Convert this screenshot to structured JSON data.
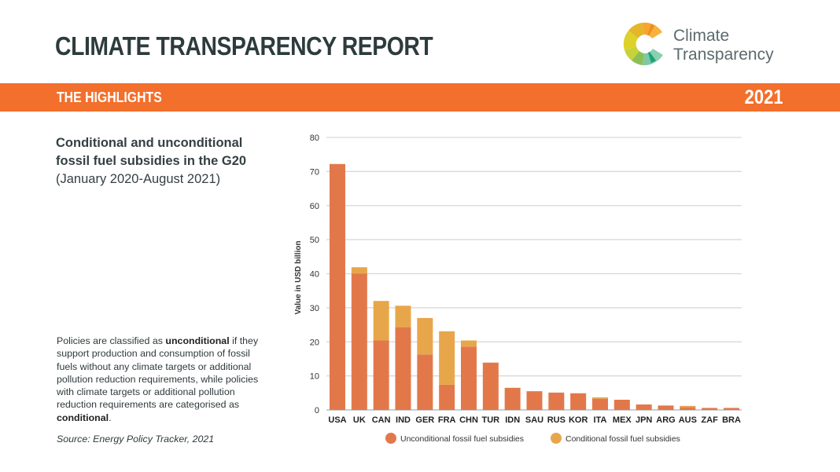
{
  "header": {
    "title": "CLIMATE TRANSPARENCY REPORT",
    "logo_line1": "Climate",
    "logo_line2": "Transparency",
    "band_label": "THE HIGHLIGHTS",
    "year": "2021"
  },
  "colors": {
    "brand_orange": "#f26f2c",
    "unconditional": "#e2784a",
    "conditional": "#e8a64a"
  },
  "text": {
    "chart_title_line1": "Conditional and unconditional",
    "chart_title_line2": "fossil fuel subsidies in the G20",
    "chart_subtitle": "(January 2020-August 2021)",
    "note_part1": "Policies are classified as ",
    "note_bold1": "unconditional",
    "note_part2": " if they support production and consumption of fossil fuels without any climate targets or additional pollution reduction requirements, while policies with climate targets or additional pollution reduction requirements are categorised as ",
    "note_bold2": "conditional",
    "note_part3": ".",
    "source": "Source: Energy Policy Tracker, 2021"
  },
  "chart_data": {
    "type": "bar",
    "stacked": true,
    "title": "Conditional and unconditional fossil fuel subsidies in the G20 (January 2020-August 2021)",
    "xlabel": "",
    "ylabel": "Value in USD billion",
    "ylim": [
      0,
      80
    ],
    "yticks": [
      0,
      10,
      20,
      30,
      40,
      50,
      60,
      70,
      80
    ],
    "grid": true,
    "legend_position": "bottom",
    "categories": [
      "USA",
      "UK",
      "CAN",
      "IND",
      "GER",
      "FRA",
      "CHN",
      "TUR",
      "IDN",
      "SAU",
      "RUS",
      "KOR",
      "ITA",
      "MEX",
      "JPN",
      "ARG",
      "AUS",
      "ZAF",
      "BRA"
    ],
    "series": [
      {
        "name": "Unconditional fossil fuel subsidies",
        "color": "#e2784a",
        "values": [
          72.2,
          40.0,
          20.4,
          24.3,
          16.3,
          7.4,
          18.6,
          13.9,
          6.5,
          5.5,
          5.1,
          4.9,
          3.3,
          3.0,
          1.6,
          1.3,
          0.85,
          0.6,
          0.6
        ]
      },
      {
        "name": "Conditional fossil fuel subsidies",
        "color": "#e8a64a",
        "values": [
          0,
          1.9,
          11.6,
          6.3,
          10.7,
          15.7,
          1.8,
          0,
          0,
          0,
          0,
          0,
          0.4,
          0,
          0,
          0,
          0.35,
          0,
          0
        ]
      }
    ]
  }
}
